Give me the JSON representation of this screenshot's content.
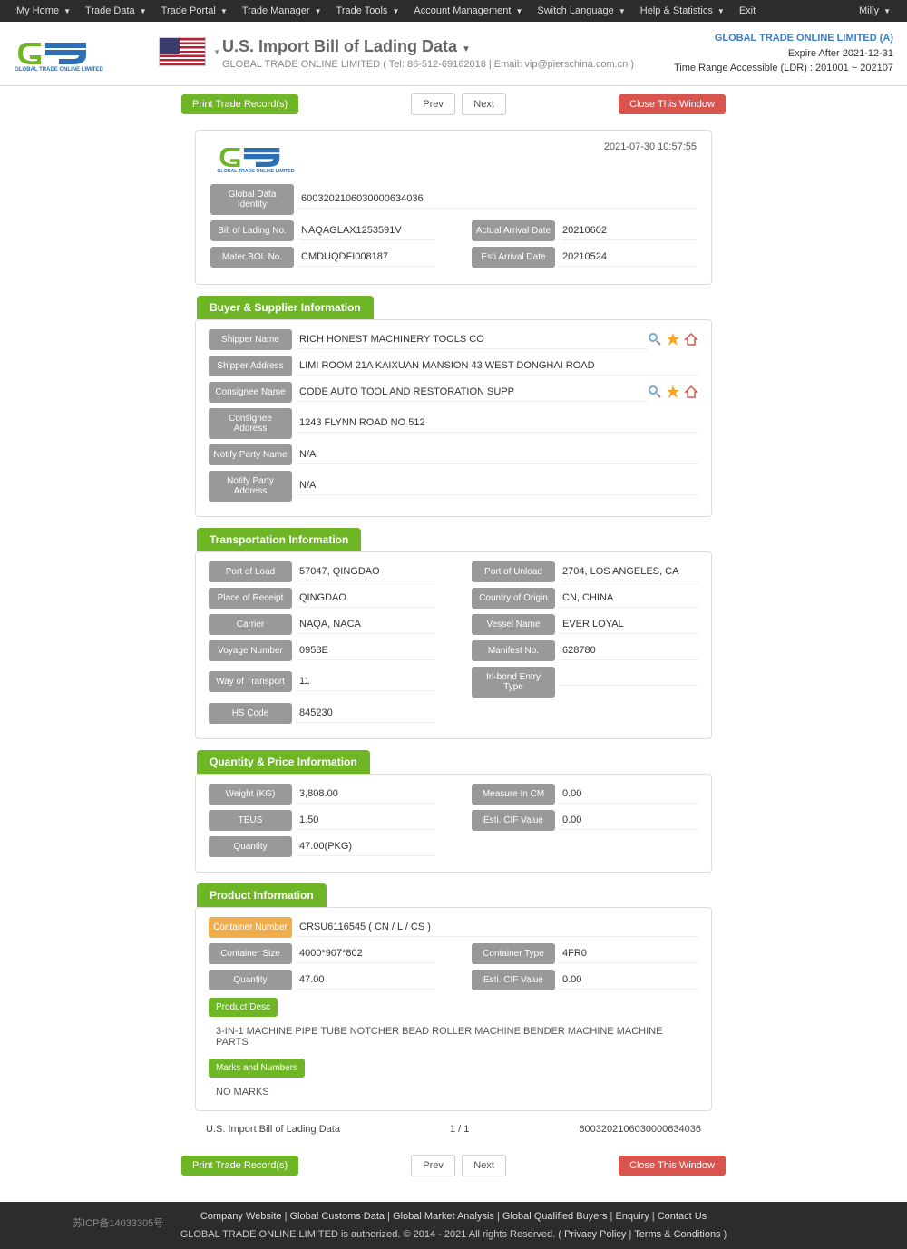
{
  "nav": {
    "items": [
      "My Home",
      "Trade Data",
      "Trade Portal",
      "Trade Manager",
      "Trade Tools",
      "Account Management",
      "Switch Language",
      "Help & Statistics",
      "Exit"
    ],
    "user": "Milly"
  },
  "header": {
    "page_title": "U.S. Import Bill of Lading Data",
    "contact": "GLOBAL TRADE ONLINE LIMITED ( Tel: 86-512-69162018 | Email: vip@pierschina.com.cn )",
    "company": "GLOBAL TRADE ONLINE LIMITED (A)",
    "expire": "Expire After 2021-12-31",
    "time_range": "Time Range Accessible (LDR) : 201001 ~ 202107"
  },
  "toolbar": {
    "print": "Print Trade Record(s)",
    "prev": "Prev",
    "next": "Next",
    "close": "Close This Window"
  },
  "record": {
    "timestamp": "2021-07-30 10:57:55",
    "identity": {
      "global_id_lbl": "Global Data Identity",
      "global_id": "60032021060300006340​36",
      "bol_lbl": "Bill of Lading No.",
      "bol": "NAQAGLAX1253591V",
      "mater_lbl": "Mater BOL No.",
      "mater": "CMDUQDFI008187",
      "actual_lbl": "Actual Arrival Date",
      "actual": "20210602",
      "esti_lbl": "Esti Arrival Date",
      "esti": "20210524"
    }
  },
  "buyer_supplier": {
    "title": "Buyer & Supplier Information",
    "shipper_name_lbl": "Shipper Name",
    "shipper_name": "RICH HONEST MACHINERY TOOLS CO",
    "shipper_addr_lbl": "Shipper Address",
    "shipper_addr": "LIMI ROOM 21A KAIXUAN MANSION 43 WEST DONGHAI ROAD",
    "consignee_name_lbl": "Consignee Name",
    "consignee_name": "CODE AUTO TOOL AND RESTORATION SUPP",
    "consignee_addr_lbl": "Consignee Address",
    "consignee_addr": "1243 FLYNN ROAD NO 512",
    "notify_name_lbl": "Notify Party Name",
    "notify_name": "N/A",
    "notify_addr_lbl": "Notify Party Address",
    "notify_addr": "N/A"
  },
  "transport": {
    "title": "Transportation Information",
    "port_load_lbl": "Port of Load",
    "port_load": "57047, QINGDAO",
    "port_unload_lbl": "Port of Unload",
    "port_unload": "2704, LOS ANGELES, CA",
    "receipt_lbl": "Place of Receipt",
    "receipt": "QINGDAO",
    "origin_lbl": "Country of Origin",
    "origin": "CN, CHINA",
    "carrier_lbl": "Carrier",
    "carrier": "NAQA, NACA",
    "vessel_lbl": "Vessel Name",
    "vessel": "EVER LOYAL",
    "voyage_lbl": "Voyage Number",
    "voyage": "0958E",
    "manifest_lbl": "Manifest No.",
    "manifest": "628780",
    "way_lbl": "Way of Transport",
    "way": "11",
    "inbond_lbl": "In-bond Entry Type",
    "inbond": "",
    "hs_lbl": "HS Code",
    "hs": "845230"
  },
  "qty": {
    "title": "Quantity & Price Information",
    "weight_lbl": "Weight (KG)",
    "weight": "3,808.00",
    "measure_lbl": "Measure In CM",
    "measure": "0.00",
    "teus_lbl": "TEUS",
    "teus": "1.50",
    "cif_lbl": "Esti. CIF Value",
    "cif": "0.00",
    "qty_lbl": "Quantity",
    "qty_val": "47.00(PKG)"
  },
  "product": {
    "title": "Product Information",
    "container_no_lbl": "Container Number",
    "container_no": "CRSU6116545 ( CN / L / CS )",
    "size_lbl": "Container Size",
    "size": "4000*907*802",
    "type_lbl": "Container Type",
    "type": "4FR0",
    "qty_lbl": "Quantity",
    "qty": "47.00",
    "cif_lbl": "Esti. CIF Value",
    "cif": "0.00",
    "desc_lbl": "Product Desc",
    "desc": "3-IN-1 MACHINE PIPE TUBE NOTCHER BEAD ROLLER MACHINE BENDER MACHINE MACHINE PARTS",
    "marks_lbl": "Marks and Numbers",
    "marks": "NO MARKS"
  },
  "footer_rec": {
    "title": "U.S. Import Bill of Lading Data",
    "page": "1 / 1",
    "id": "60032021060300006340​36"
  },
  "site_footer": {
    "links": [
      "Company Website",
      "Global Customs Data",
      "Global Market Analysis",
      "Global Qualified Buyers",
      "Enquiry",
      "Contact Us"
    ],
    "copyright": "GLOBAL TRADE ONLINE LIMITED is authorized. © 2014 - 2021 All rights Reserved.   ( ",
    "privacy": "Privacy Policy",
    "terms": "Terms & Conditions",
    "close": " )",
    "icp": "苏ICP备14033305号"
  }
}
